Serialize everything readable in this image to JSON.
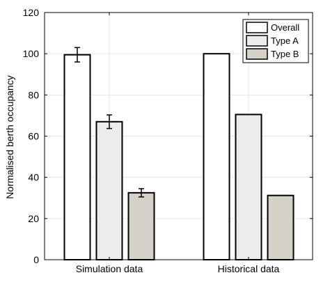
{
  "chart_data": {
    "type": "bar",
    "title": "",
    "xlabel": "",
    "ylabel": "Normalised berth occupancy",
    "categories": [
      "Simulation data",
      "Historical data"
    ],
    "ylim": [
      0,
      120
    ],
    "yticks": [
      0,
      20,
      40,
      60,
      80,
      100,
      120
    ],
    "grid": true,
    "legend_position": "top-right",
    "series": [
      {
        "name": "Overall",
        "values": [
          99.5,
          100
        ],
        "errors": [
          3.5,
          null
        ],
        "color": "#ffffff"
      },
      {
        "name": "Type A",
        "values": [
          67,
          70.5
        ],
        "errors": [
          3.3,
          null
        ],
        "color": "#ececec"
      },
      {
        "name": "Type B",
        "values": [
          32.5,
          31.2
        ],
        "errors": [
          2.0,
          null
        ],
        "color": "#d6d1c8"
      }
    ]
  }
}
